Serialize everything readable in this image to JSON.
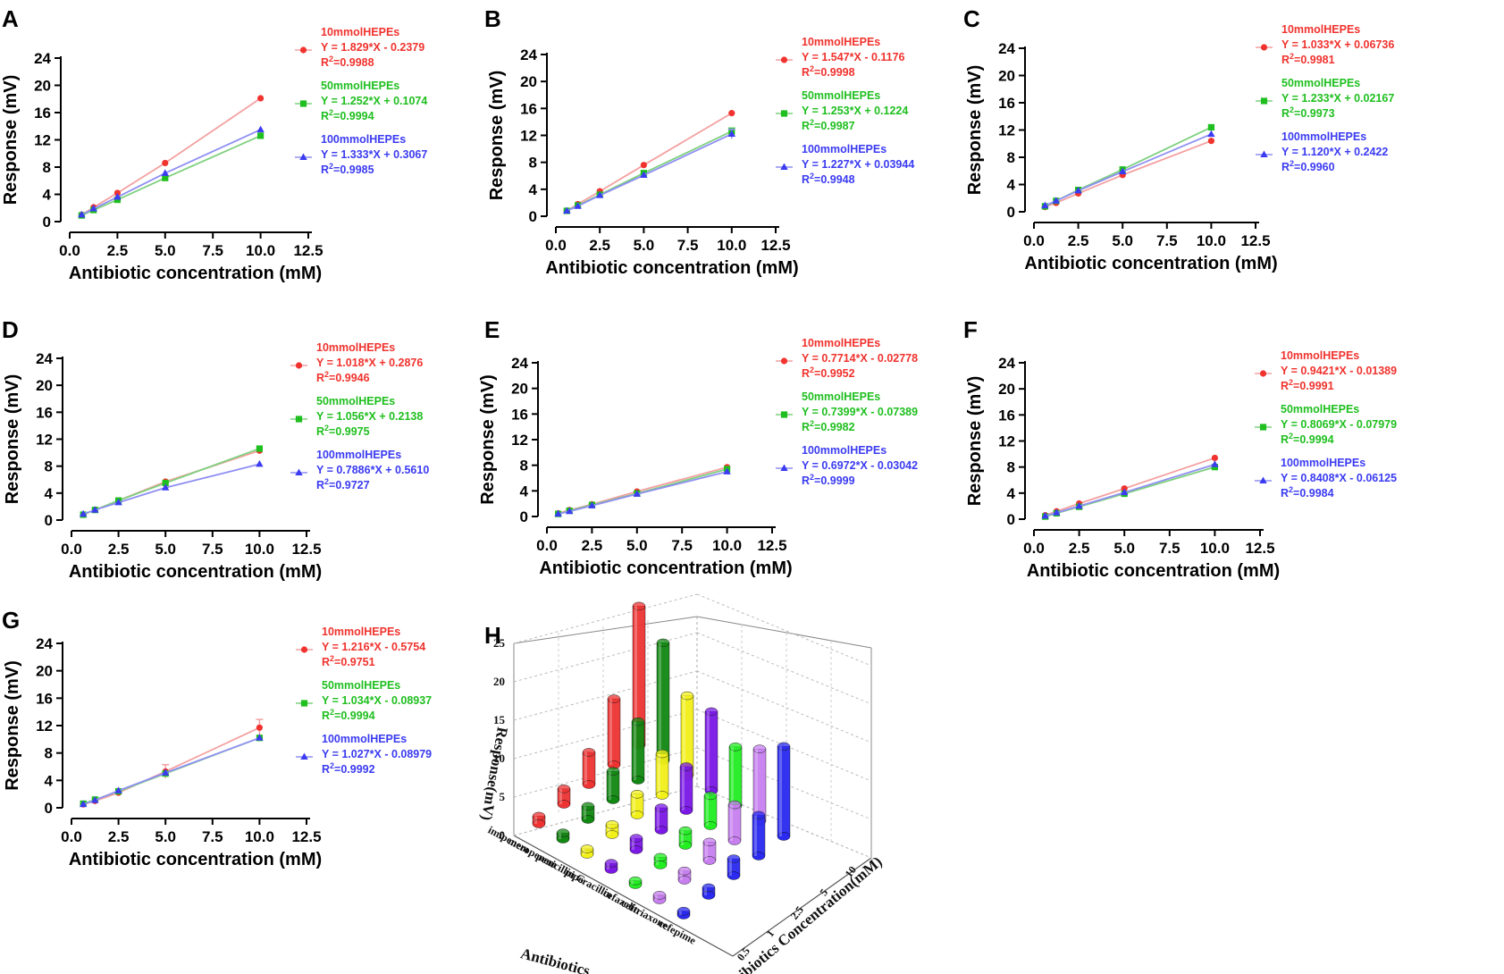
{
  "figure": {
    "common": {
      "x_label": "Antibiotic concentration (mM)",
      "y_label": "Response (mV)",
      "x_ticks": [
        "0.0",
        "2.5",
        "5.0",
        "7.5",
        "10.0",
        "12.5"
      ],
      "y_ticks": [
        "0",
        "4",
        "8",
        "12",
        "16",
        "20",
        "24"
      ],
      "series_colors": [
        "#f0332e",
        "#1fbf1f",
        "#3b3bf2"
      ],
      "line_colors": [
        "#f4a0a0",
        "#7fd07f",
        "#8f8ff2"
      ]
    }
  },
  "chart_data": [
    {
      "panel": "A",
      "type": "line",
      "xlim": [
        0,
        12.5
      ],
      "ylim": [
        0,
        24
      ],
      "x": [
        0.625,
        1.25,
        2.5,
        5,
        10
      ],
      "series": [
        {
          "name": "10mmolHEPEs",
          "equation": "Y = 1.829*X - 0.2379",
          "r2_label": "R",
          "r2_sup": "2",
          "r2_value": "=0.9988",
          "marker": "circle",
          "values": [
            1.0,
            2.1,
            4.2,
            8.6,
            18.1
          ],
          "errors": [
            0,
            0,
            0,
            0,
            0
          ]
        },
        {
          "name": "50mmolHEPEs",
          "equation": "Y = 1.252*X + 0.1074",
          "r2_label": "R",
          "r2_sup": "2",
          "r2_value": "=0.9994",
          "marker": "square",
          "values": [
            0.9,
            1.7,
            3.2,
            6.4,
            12.6
          ],
          "errors": [
            0,
            0,
            0,
            0,
            0
          ]
        },
        {
          "name": "100mmolHEPEs",
          "equation": "Y = 1.333*X + 0.3067",
          "r2_label": "R",
          "r2_sup": "2",
          "r2_value": "=0.9985",
          "marker": "triangle",
          "values": [
            1.0,
            1.9,
            3.6,
            7.1,
            13.5
          ],
          "errors": [
            0,
            0,
            0,
            0,
            0
          ]
        }
      ]
    },
    {
      "panel": "B",
      "type": "line",
      "xlim": [
        0,
        12.5
      ],
      "ylim": [
        0,
        24
      ],
      "x": [
        0.625,
        1.25,
        2.5,
        5,
        10
      ],
      "series": [
        {
          "name": "10mmolHEPEs",
          "equation": "Y = 1.547*X - 0.1176",
          "r2_label": "R",
          "r2_sup": "2",
          "r2_value": "=0.9998",
          "marker": "circle",
          "values": [
            0.8,
            1.8,
            3.7,
            7.6,
            15.3
          ],
          "errors": [
            0,
            0,
            0,
            0,
            0
          ]
        },
        {
          "name": "50mmolHEPEs",
          "equation": "Y = 1.253*X + 0.1224",
          "r2_label": "R",
          "r2_sup": "2",
          "r2_value": "=0.9987",
          "marker": "square",
          "values": [
            0.8,
            1.6,
            3.2,
            6.4,
            12.6
          ],
          "errors": [
            0,
            0,
            0,
            0,
            0.5
          ]
        },
        {
          "name": "100mmolHEPEs",
          "equation": "Y = 1.227*X + 0.03944",
          "r2_label": "R",
          "r2_sup": "2",
          "r2_value": "=0.9948",
          "marker": "triangle",
          "values": [
            0.8,
            1.5,
            3.1,
            6.1,
            12.2
          ],
          "errors": [
            0,
            0,
            0,
            0,
            0.7
          ]
        }
      ]
    },
    {
      "panel": "C",
      "type": "line",
      "xlim": [
        0,
        12.5
      ],
      "ylim": [
        0,
        24
      ],
      "x": [
        0.625,
        1.25,
        2.5,
        5,
        10
      ],
      "series": [
        {
          "name": "10mmolHEPEs",
          "equation": "Y = 1.033*X + 0.06736",
          "r2_label": "R",
          "r2_sup": "2",
          "r2_value": "=0.9981",
          "marker": "circle",
          "values": [
            0.7,
            1.3,
            2.7,
            5.4,
            10.4
          ],
          "errors": [
            0,
            0,
            0,
            0,
            0
          ]
        },
        {
          "name": "50mmolHEPEs",
          "equation": "Y = 1.233*X + 0.02167",
          "r2_label": "R",
          "r2_sup": "2",
          "r2_value": "=0.9973",
          "marker": "square",
          "values": [
            0.8,
            1.6,
            3.2,
            6.2,
            12.4
          ],
          "errors": [
            0,
            0,
            0,
            0,
            0
          ]
        },
        {
          "name": "100mmolHEPEs",
          "equation": "Y = 1.120*X + 0.2422",
          "r2_label": "R",
          "r2_sup": "2",
          "r2_value": "=0.9960",
          "marker": "triangle",
          "values": [
            0.9,
            1.6,
            3.1,
            5.9,
            11.4
          ],
          "errors": [
            0,
            0,
            0,
            0,
            0
          ]
        }
      ]
    },
    {
      "panel": "D",
      "type": "line",
      "xlim": [
        0,
        12.5
      ],
      "ylim": [
        0,
        24
      ],
      "x": [
        0.625,
        1.25,
        2.5,
        5,
        10
      ],
      "series": [
        {
          "name": "10mmolHEPEs",
          "equation": "Y = 1.018*X + 0.2876",
          "r2_label": "R",
          "r2_sup": "2",
          "r2_value": "=0.9946",
          "marker": "circle",
          "values": [
            0.8,
            1.5,
            2.9,
            5.7,
            10.3
          ],
          "errors": [
            0,
            0,
            0,
            0,
            0
          ]
        },
        {
          "name": "50mmolHEPEs",
          "equation": "Y = 1.056*X + 0.2138",
          "r2_label": "R",
          "r2_sup": "2",
          "r2_value": "=0.9975",
          "marker": "square",
          "values": [
            0.8,
            1.5,
            2.9,
            5.5,
            10.6
          ],
          "errors": [
            0,
            0,
            0,
            0,
            0
          ]
        },
        {
          "name": "100mmolHEPEs",
          "equation": "Y = 0.7886*X + 0.5610",
          "r2_label": "R",
          "r2_sup": "2",
          "r2_value": "=0.9727",
          "marker": "triangle",
          "values": [
            0.9,
            1.5,
            2.6,
            4.8,
            8.3
          ],
          "errors": [
            0,
            0,
            0,
            0,
            0
          ]
        }
      ]
    },
    {
      "panel": "E",
      "type": "line",
      "xlim": [
        0,
        12.5
      ],
      "ylim": [
        0,
        24
      ],
      "x": [
        0.625,
        1.25,
        2.5,
        5,
        10
      ],
      "series": [
        {
          "name": "10mmolHEPEs",
          "equation": "Y = 0.7714*X - 0.02778",
          "r2_label": "R",
          "r2_sup": "2",
          "r2_value": "=0.9952",
          "marker": "circle",
          "values": [
            0.5,
            1.0,
            1.9,
            3.9,
            7.7
          ],
          "errors": [
            0,
            0,
            0,
            0,
            0
          ]
        },
        {
          "name": "50mmolHEPEs",
          "equation": "Y = 0.7399*X - 0.07389",
          "r2_label": "R",
          "r2_sup": "2",
          "r2_value": "=0.9982",
          "marker": "square",
          "values": [
            0.4,
            0.9,
            1.8,
            3.6,
            7.4
          ],
          "errors": [
            0,
            0,
            0,
            0,
            0
          ]
        },
        {
          "name": "100mmolHEPEs",
          "equation": "Y = 0.6972*X - 0.03042",
          "r2_label": "R",
          "r2_sup": "2",
          "r2_value": "=0.9999",
          "marker": "triangle",
          "values": [
            0.4,
            0.8,
            1.7,
            3.5,
            7.0
          ],
          "errors": [
            0,
            0,
            0,
            0,
            0
          ]
        }
      ]
    },
    {
      "panel": "F",
      "type": "line",
      "xlim": [
        0,
        12.5
      ],
      "ylim": [
        0,
        24
      ],
      "x": [
        0.625,
        1.25,
        2.5,
        5,
        10
      ],
      "series": [
        {
          "name": "10mmolHEPEs",
          "equation": "Y = 0.9421*X - 0.01389",
          "r2_label": "R",
          "r2_sup": "2",
          "r2_value": "=0.9991",
          "marker": "circle",
          "values": [
            0.6,
            1.2,
            2.4,
            4.7,
            9.4
          ],
          "errors": [
            0,
            0,
            0,
            0,
            0
          ]
        },
        {
          "name": "50mmolHEPEs",
          "equation": "Y = 0.8069*X - 0.07979",
          "r2_label": "R",
          "r2_sup": "2",
          "r2_value": "=0.9994",
          "marker": "square",
          "values": [
            0.4,
            0.9,
            1.9,
            3.9,
            8.0
          ],
          "errors": [
            0,
            0,
            0,
            0,
            0
          ]
        },
        {
          "name": "100mmolHEPEs",
          "equation": "Y = 0.8408*X - 0.06125",
          "r2_label": "R",
          "r2_sup": "2",
          "r2_value": "=0.9984",
          "marker": "triangle",
          "values": [
            0.5,
            1.0,
            2.0,
            4.1,
            8.4
          ],
          "errors": [
            0,
            0,
            0,
            0,
            0
          ]
        }
      ]
    },
    {
      "panel": "G",
      "type": "line",
      "xlim": [
        0,
        12.5
      ],
      "ylim": [
        0,
        24
      ],
      "x": [
        0.625,
        1.25,
        2.5,
        5,
        10
      ],
      "series": [
        {
          "name": "10mmolHEPEs",
          "equation": "Y = 1.216*X - 0.5754",
          "r2_label": "R",
          "r2_sup": "2",
          "r2_value": "=0.9751",
          "marker": "circle",
          "values": [
            0.5,
            1.0,
            2.2,
            5.3,
            11.7
          ],
          "errors": [
            0,
            0,
            0,
            1.0,
            1.2
          ]
        },
        {
          "name": "50mmolHEPEs",
          "equation": "Y = 1.034*X - 0.08937",
          "r2_label": "R",
          "r2_sup": "2",
          "r2_value": "=0.9994",
          "marker": "square",
          "values": [
            0.6,
            1.2,
            2.4,
            5.0,
            10.2
          ],
          "errors": [
            0,
            0,
            0,
            0,
            0
          ]
        },
        {
          "name": "100mmolHEPEs",
          "equation": "Y = 1.027*X - 0.08979",
          "r2_label": "R",
          "r2_sup": "2",
          "r2_value": "=0.9992",
          "marker": "triangle",
          "values": [
            0.5,
            1.1,
            2.5,
            5.1,
            10.2
          ],
          "errors": [
            0,
            0,
            0,
            0,
            0
          ]
        }
      ]
    },
    {
      "panel": "H",
      "type": "bar3d",
      "zlabel": "Response(mV)",
      "xlabel": "Antibiotics",
      "ylabel": "Antibiotics Concentration(mM)",
      "z_ticks": [
        "0",
        "5",
        "10",
        "15",
        "20",
        "25"
      ],
      "zlim": [
        0,
        25
      ],
      "antibiotics": [
        "imipenem",
        "meropenem",
        "penicillin G",
        "piperacillin",
        "cefazolin",
        "ceftriaxone",
        "cefepime"
      ],
      "concentrations": [
        "0.5",
        "1",
        "2.5",
        "5",
        "10"
      ],
      "colors": [
        "#ee3333",
        "#118811",
        "#f2f01a",
        "#7a18e6",
        "#22ee22",
        "#c77ff0",
        "#2a2af0"
      ],
      "values": [
        [
          1.0,
          2.0,
          4.2,
          8.6,
          18.1
        ],
        [
          0.8,
          1.7,
          3.7,
          7.6,
          15.3
        ],
        [
          0.7,
          1.3,
          2.7,
          5.4,
          10.4
        ],
        [
          0.8,
          1.5,
          2.9,
          5.7,
          10.3
        ],
        [
          0.5,
          1.0,
          1.9,
          3.9,
          7.7
        ],
        [
          0.6,
          1.2,
          2.4,
          4.7,
          9.4
        ],
        [
          0.5,
          1.0,
          2.2,
          5.3,
          11.7
        ]
      ]
    }
  ]
}
